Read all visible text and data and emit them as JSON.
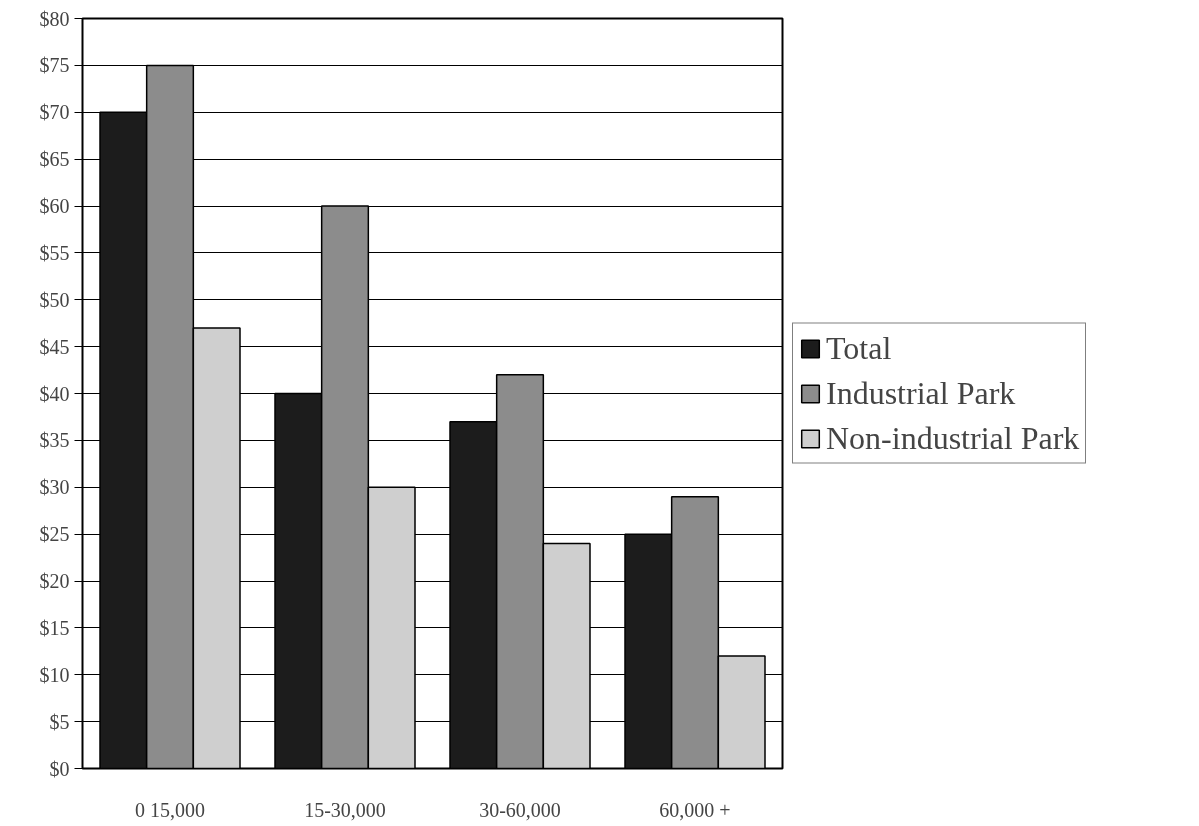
{
  "chart_data": {
    "type": "bar",
    "categories": [
      "0 15,000",
      "15-30,000",
      "30-60,000",
      "60,000 +"
    ],
    "series": [
      {
        "name": "Total",
        "color": "#1c1c1c",
        "values": [
          70,
          40,
          37,
          25
        ]
      },
      {
        "name": "Industrial Park",
        "color": "#8c8c8c",
        "values": [
          75,
          60,
          42,
          29
        ]
      },
      {
        "name": "Non-industrial Park",
        "color": "#cfcfcf",
        "values": [
          47,
          30,
          24,
          12
        ]
      }
    ],
    "ylim": [
      0,
      80
    ],
    "yticks": [
      {
        "value": 0,
        "label": "$0"
      },
      {
        "value": 5,
        "label": "$5"
      },
      {
        "value": 10,
        "label": "$10"
      },
      {
        "value": 15,
        "label": "$15"
      },
      {
        "value": 20,
        "label": "$20"
      },
      {
        "value": 25,
        "label": "$25"
      },
      {
        "value": 30,
        "label": "$30"
      },
      {
        "value": 35,
        "label": "$35"
      },
      {
        "value": 40,
        "label": "$40"
      },
      {
        "value": 45,
        "label": "$45"
      },
      {
        "value": 50,
        "label": "$50"
      },
      {
        "value": 55,
        "label": "$55"
      },
      {
        "value": 60,
        "label": "$60"
      },
      {
        "value": 65,
        "label": "$65"
      },
      {
        "value": 70,
        "label": "$70"
      },
      {
        "value": 75,
        "label": "$75"
      },
      {
        "value": 80,
        "label": "$80"
      }
    ],
    "grid": "y",
    "legend": "right"
  }
}
